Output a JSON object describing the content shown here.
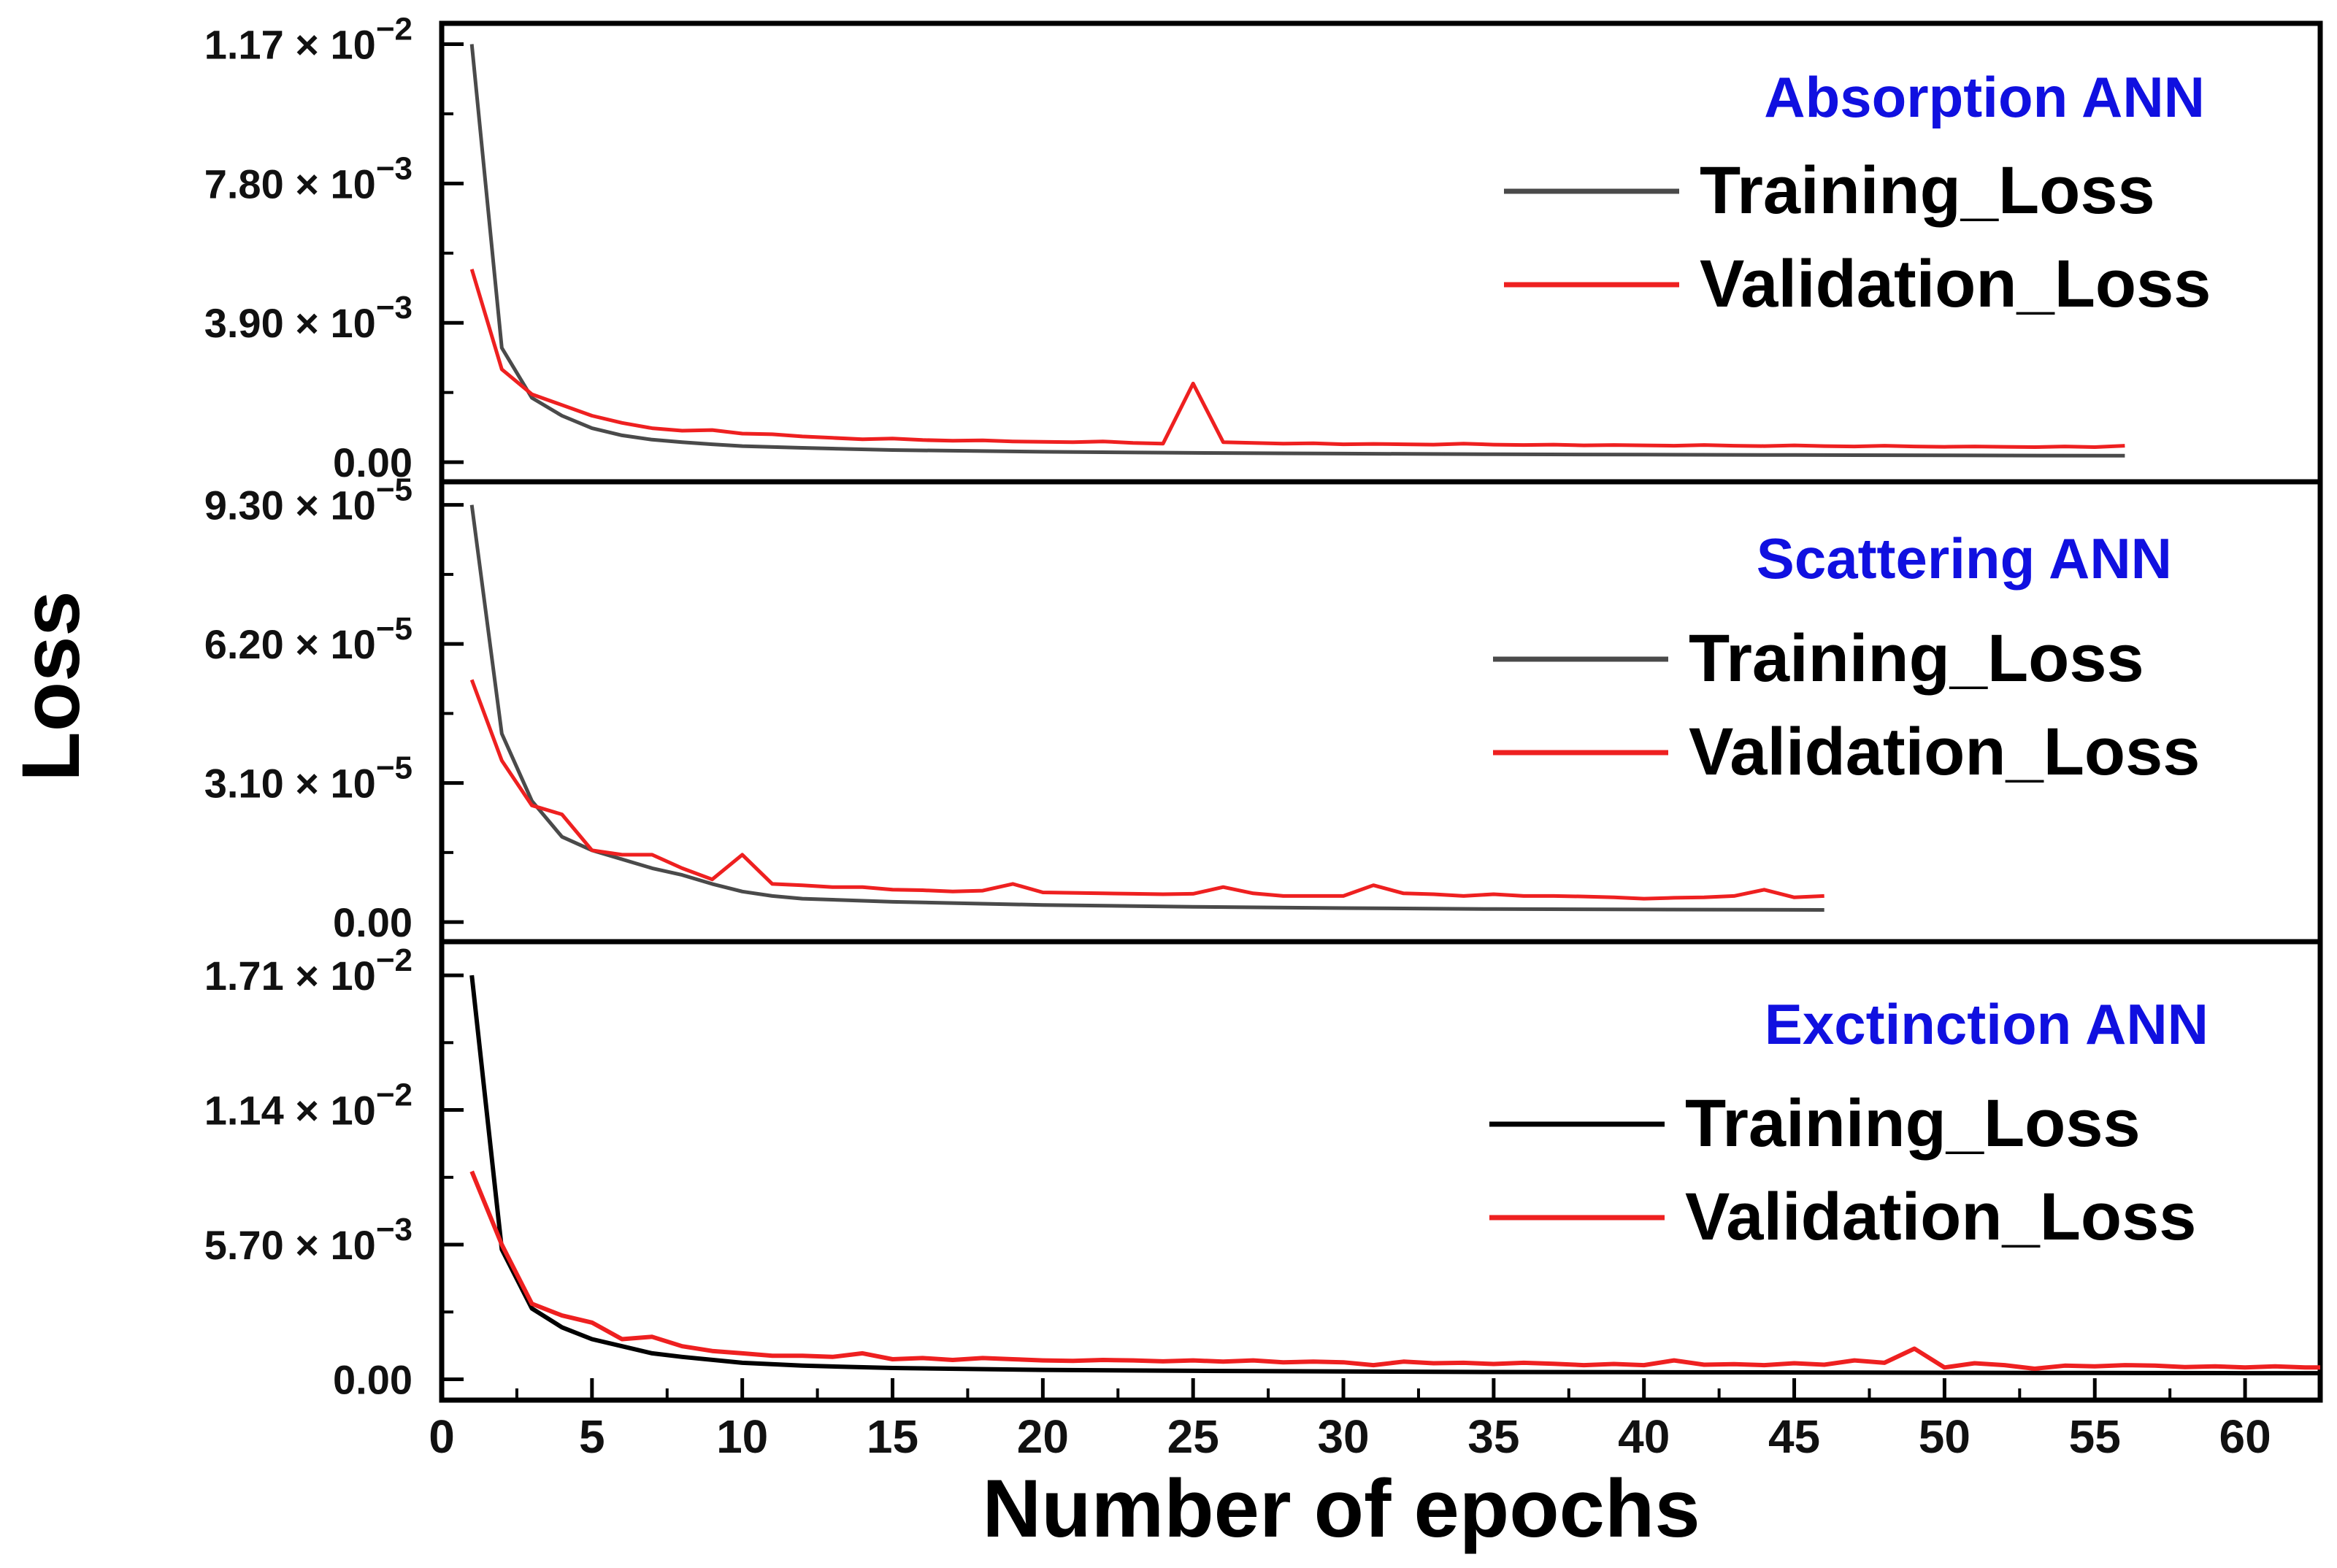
{
  "chart_data": {
    "type": "line",
    "xlabel": "Number of epochs",
    "ylabel": "Loss",
    "xlim": [
      0,
      62.5
    ],
    "xticks": [
      0,
      5,
      10,
      15,
      20,
      25,
      30,
      35,
      40,
      45,
      50,
      55,
      60
    ],
    "xtick_labels": [
      "0",
      "5",
      "10",
      "15",
      "20",
      "25",
      "30",
      "35",
      "40",
      "45",
      "50",
      "55",
      "60"
    ],
    "colors": {
      "validation": "#ee2020",
      "panel_title": "#1010e0",
      "frame": "#000000"
    },
    "legend_placement": "top-right",
    "panels": [
      {
        "title": "Absorption ANN",
        "ylim": [
          -0.0001,
          0.0122
        ],
        "yticks": [
          {
            "value": 0,
            "mantissa": "0.00",
            "exp": ""
          },
          {
            "value": 0.0039,
            "mantissa": "3.90 × 10",
            "exp": "−3"
          },
          {
            "value": 0.0078,
            "mantissa": "7.80 × 10",
            "exp": "−3"
          },
          {
            "value": 0.0117,
            "mantissa": "1.17 × 10",
            "exp": "−2"
          }
        ],
        "series": [
          {
            "name": "Training_Loss",
            "color": "#4a4a4a",
            "x": [
              1,
              2,
              3,
              4,
              5,
              6,
              7,
              8,
              9,
              10,
              12,
              15,
              20,
              25,
              30,
              35,
              40,
              45,
              50,
              56
            ],
            "values": [
              0.0117,
              0.0032,
              0.0018,
              0.0013,
              0.00095,
              0.00075,
              0.00063,
              0.00056,
              0.0005,
              0.00045,
              0.0004,
              0.00034,
              0.00029,
              0.00026,
              0.00024,
              0.00022,
              0.00021,
              0.0002,
              0.00019,
              0.00018
            ]
          },
          {
            "name": "Validation_Loss",
            "color": "#ee2020",
            "x": [
              1,
              2,
              3,
              4,
              5,
              6,
              7,
              8,
              9,
              10,
              11,
              12,
              13,
              14,
              15,
              16,
              17,
              18,
              19,
              20,
              21,
              22,
              23,
              24,
              25,
              26,
              27,
              28,
              29,
              30,
              31,
              32,
              33,
              34,
              35,
              36,
              37,
              38,
              39,
              40,
              41,
              42,
              43,
              44,
              45,
              46,
              47,
              48,
              49,
              50,
              51,
              52,
              53,
              54,
              55,
              56
            ],
            "values": [
              0.0054,
              0.0026,
              0.0019,
              0.0016,
              0.0013,
              0.0011,
              0.00095,
              0.00088,
              0.0009,
              0.0008,
              0.00078,
              0.00072,
              0.00068,
              0.00064,
              0.00066,
              0.00062,
              0.0006,
              0.00061,
              0.00058,
              0.00057,
              0.00056,
              0.00058,
              0.00054,
              0.00052,
              0.0022,
              0.00056,
              0.00054,
              0.00052,
              0.00053,
              0.0005,
              0.00051,
              0.0005,
              0.00049,
              0.00052,
              0.00049,
              0.00048,
              0.00049,
              0.00047,
              0.00048,
              0.00047,
              0.00046,
              0.00048,
              0.00046,
              0.00045,
              0.00047,
              0.00045,
              0.00044,
              0.00046,
              0.00044,
              0.00043,
              0.00044,
              0.00043,
              0.00042,
              0.00044,
              0.00042,
              0.00046
            ]
          }
        ]
      },
      {
        "title": "Scattering ANN",
        "ylim": [
          -8e-07,
          9.75e-05
        ],
        "yticks": [
          {
            "value": 0,
            "mantissa": "0.00",
            "exp": ""
          },
          {
            "value": 3.1e-05,
            "mantissa": "3.10 × 10",
            "exp": "−5"
          },
          {
            "value": 6.2e-05,
            "mantissa": "6.20 × 10",
            "exp": "−5"
          },
          {
            "value": 9.3e-05,
            "mantissa": "9.30 × 10",
            "exp": "−5"
          }
        ],
        "series": [
          {
            "name": "Training_Loss",
            "color": "#4a4a4a",
            "x": [
              1,
              2,
              3,
              4,
              5,
              6,
              7,
              8,
              9,
              10,
              11,
              12,
              15,
              20,
              25,
              30,
              35,
              40,
              46
            ],
            "values": [
              9.3e-05,
              4.2e-05,
              2.7e-05,
              1.9e-05,
              1.6e-05,
              1.4e-05,
              1.2e-05,
              1.05e-05,
              8.5e-06,
              6.8e-06,
              5.8e-06,
              5.2e-06,
              4.5e-06,
              3.8e-06,
              3.4e-06,
              3.1e-06,
              2.9e-06,
              2.8e-06,
              2.7e-06
            ]
          },
          {
            "name": "Validation_Loss",
            "color": "#ee2020",
            "x": [
              1,
              2,
              3,
              4,
              5,
              6,
              7,
              8,
              9,
              10,
              11,
              12,
              13,
              14,
              15,
              16,
              17,
              18,
              19,
              20,
              21,
              22,
              23,
              24,
              25,
              26,
              27,
              28,
              29,
              30,
              31,
              32,
              33,
              34,
              35,
              36,
              37,
              38,
              39,
              40,
              41,
              42,
              43,
              44,
              45,
              46
            ],
            "values": [
              5.4e-05,
              3.6e-05,
              2.6e-05,
              2.4e-05,
              1.6e-05,
              1.5e-05,
              1.5e-05,
              1.2e-05,
              9.5e-06,
              1.5e-05,
              8.5e-06,
              8.2e-06,
              7.8e-06,
              7.8e-06,
              7.2e-06,
              7.1e-06,
              6.8e-06,
              7e-06,
              8.5e-06,
              6.6e-06,
              6.5e-06,
              6.4e-06,
              6.3e-06,
              6.2e-06,
              6.3e-06,
              7.8e-06,
              6.4e-06,
              5.8e-06,
              5.8e-06,
              5.8e-06,
              8.2e-06,
              6.4e-06,
              6.2e-06,
              5.8e-06,
              6.2e-06,
              5.8e-06,
              5.8e-06,
              5.7e-06,
              5.5e-06,
              5.2e-06,
              5.4e-06,
              5.5e-06,
              5.8e-06,
              7.2e-06,
              5.5e-06,
              5.8e-06
            ]
          }
        ]
      },
      {
        "title": "Exctinction ANN",
        "ylim": [
          -0.0002,
          0.0184
        ],
        "yticks": [
          {
            "value": 0,
            "mantissa": "0.00",
            "exp": ""
          },
          {
            "value": 0.0057,
            "mantissa": "5.70 × 10",
            "exp": "−3"
          },
          {
            "value": 0.0114,
            "mantissa": "1.14 × 10",
            "exp": "−2"
          },
          {
            "value": 0.0171,
            "mantissa": "1.71 × 10",
            "exp": "−2"
          }
        ],
        "series": [
          {
            "name": "Training_Loss",
            "color": "#000000",
            "x": [
              1,
              2,
              3,
              4,
              5,
              6,
              7,
              8,
              10,
              12,
              15,
              20,
              25,
              30,
              35,
              40,
              45,
              50,
              55,
              60,
              62.5
            ],
            "values": [
              0.0171,
              0.0055,
              0.003,
              0.0022,
              0.0017,
              0.0014,
              0.0011,
              0.00095,
              0.0007,
              0.00058,
              0.00048,
              0.0004,
              0.00036,
              0.00033,
              0.00031,
              0.0003,
              0.00029,
              0.00028,
              0.00027,
              0.00026,
              0.00026
            ]
          },
          {
            "name": "Validation_Loss",
            "color": "#ee2020",
            "x": [
              1,
              2,
              3,
              4,
              5,
              6,
              7,
              8,
              9,
              10,
              11,
              12,
              13,
              14,
              15,
              16,
              17,
              18,
              19,
              20,
              21,
              22,
              23,
              24,
              25,
              26,
              27,
              28,
              29,
              30,
              31,
              32,
              33,
              34,
              35,
              36,
              37,
              38,
              39,
              40,
              41,
              42,
              43,
              44,
              45,
              46,
              47,
              48,
              49,
              50,
              51,
              52,
              53,
              54,
              55,
              56,
              57,
              58,
              59,
              60,
              61,
              62,
              62.5
            ],
            "values": [
              0.0088,
              0.0057,
              0.0032,
              0.0027,
              0.0024,
              0.0017,
              0.0018,
              0.0014,
              0.0012,
              0.0011,
              0.001,
              0.001,
              0.00095,
              0.0011,
              0.00085,
              0.0009,
              0.00082,
              0.0009,
              0.00085,
              0.0008,
              0.00078,
              0.00082,
              0.0008,
              0.00076,
              0.0008,
              0.00075,
              0.0008,
              0.00072,
              0.00075,
              0.00072,
              0.0006,
              0.00075,
              0.00068,
              0.0007,
              0.00065,
              0.0007,
              0.00066,
              0.0006,
              0.00065,
              0.0006,
              0.0008,
              0.00062,
              0.00064,
              0.0006,
              0.00068,
              0.00062,
              0.0008,
              0.0007,
              0.0013,
              0.0005,
              0.00068,
              0.0006,
              0.00045,
              0.00058,
              0.00055,
              0.0006,
              0.00058,
              0.00052,
              0.00055,
              0.0005,
              0.00055,
              0.0005,
              0.0005
            ]
          }
        ]
      }
    ]
  }
}
